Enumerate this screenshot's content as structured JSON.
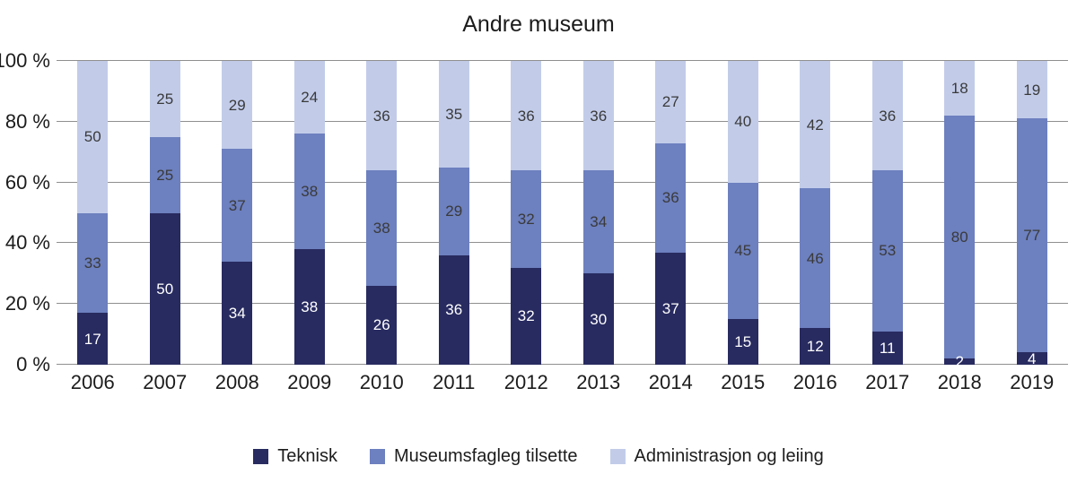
{
  "chart_data": {
    "type": "bar",
    "variant": "stacked-100-percent",
    "title": "Andre museum",
    "categories": [
      "2006",
      "2007",
      "2008",
      "2009",
      "2010",
      "2011",
      "2012",
      "2013",
      "2014",
      "2015",
      "2016",
      "2017",
      "2018",
      "2019"
    ],
    "series": [
      {
        "name": "Teknisk",
        "color": "#282b60",
        "label_color": "#ffffff",
        "values": [
          17,
          50,
          34,
          38,
          26,
          36,
          32,
          30,
          37,
          15,
          12,
          11,
          2,
          4
        ]
      },
      {
        "name": "Museumsfagleg tilsette",
        "color": "#6d80bf",
        "label_color": "#3a3a3a",
        "values": [
          33,
          25,
          37,
          38,
          38,
          29,
          32,
          34,
          36,
          45,
          46,
          53,
          80,
          77
        ]
      },
      {
        "name": "Administrasjon og leiing",
        "color": "#c2cce9",
        "label_color": "#3a3a3a",
        "values": [
          50,
          25,
          29,
          24,
          36,
          35,
          36,
          36,
          27,
          40,
          42,
          36,
          18,
          19
        ]
      }
    ],
    "y_axis": {
      "tick_labels": [
        "0 %",
        "20 %",
        "40 %",
        "60 %",
        "80 %",
        "100 %"
      ],
      "tick_values": [
        0,
        20,
        40,
        60,
        80,
        100
      ],
      "min": 0,
      "max": 100
    },
    "grid": true,
    "grid_color": "#8f8f8f",
    "legend_position": "bottom",
    "background_color": "#ffffff",
    "text_color": "#1c1c1c"
  }
}
